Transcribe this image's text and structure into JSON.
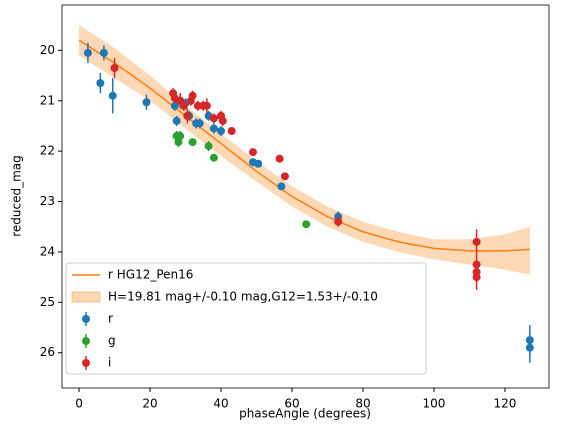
{
  "chart_data": {
    "type": "scatter",
    "xlabel": "phaseAngle (degrees)",
    "ylabel": "reduced_mag",
    "xlim": [
      -4.8,
      132.4
    ],
    "ylim": [
      26.7,
      19.1
    ],
    "xticks": [
      0,
      20,
      40,
      60,
      80,
      100,
      120
    ],
    "yticks": [
      20,
      21,
      22,
      23,
      24,
      25,
      26
    ],
    "legend": "lower left",
    "line": {
      "name": "r HG12_Pen16",
      "color": "#ff7f0e",
      "x": [
        0,
        10,
        20,
        30,
        40,
        50,
        60,
        70,
        80,
        90,
        100,
        110,
        120,
        127
      ],
      "values": [
        19.8,
        20.25,
        20.75,
        21.3,
        21.85,
        22.4,
        22.9,
        23.3,
        23.6,
        23.8,
        23.93,
        23.98,
        23.98,
        23.95
      ]
    },
    "band": {
      "name": "H=19.81 mag+/-0.10 mag,G12=1.53+/-0.10",
      "color": "#ff7f0e",
      "x": [
        0,
        10,
        20,
        30,
        40,
        50,
        60,
        70,
        80,
        90,
        100,
        110,
        120,
        127
      ],
      "lower": [
        19.5,
        19.95,
        20.5,
        21.1,
        21.65,
        22.2,
        22.7,
        23.1,
        23.4,
        23.6,
        23.75,
        23.75,
        23.65,
        23.5
      ],
      "upper": [
        20.1,
        20.55,
        21.0,
        21.55,
        22.1,
        22.6,
        23.1,
        23.5,
        23.8,
        24.0,
        24.15,
        24.25,
        24.35,
        24.45
      ]
    },
    "series": [
      {
        "name": "r",
        "color": "#1f77b4",
        "x": [
          2.5,
          6,
          7,
          9.5,
          19,
          27,
          27.5,
          28.5,
          30,
          31,
          33,
          34,
          36.5,
          38,
          40,
          49,
          50.5,
          57,
          73,
          127,
          127
        ],
        "values": [
          20.05,
          20.65,
          20.05,
          20.9,
          21.03,
          21.1,
          21.4,
          21.0,
          21.05,
          21.3,
          21.45,
          21.45,
          21.3,
          21.55,
          21.6,
          22.22,
          22.25,
          22.7,
          23.3,
          25.75,
          25.9
        ],
        "errors": [
          0.2,
          0.2,
          0.15,
          0.35,
          0.15,
          0.1,
          0.1,
          0.15,
          0.1,
          0.1,
          0.1,
          0.1,
          0.1,
          0.1,
          0.1,
          0.05,
          0.05,
          0.05,
          0.1,
          0.3,
          0.3
        ]
      },
      {
        "name": "g",
        "color": "#2ca02c",
        "x": [
          27.5,
          28,
          28.5,
          32,
          36.5,
          38,
          64
        ],
        "values": [
          21.7,
          21.82,
          21.7,
          21.82,
          21.9,
          22.13,
          23.45
        ],
        "errors": [
          0.1,
          0.1,
          0.1,
          0.05,
          0.1,
          0.05,
          0.05
        ]
      },
      {
        "name": "i",
        "color": "#d62728",
        "x": [
          10,
          26.5,
          27,
          28.5,
          29.5,
          30.5,
          31.5,
          32,
          33.5,
          35,
          36,
          38,
          40,
          40.5,
          43,
          49,
          56.5,
          58,
          73,
          112,
          112,
          112,
          112
        ],
        "values": [
          20.35,
          20.85,
          20.95,
          21.0,
          21.1,
          21.3,
          21.0,
          20.9,
          21.1,
          21.1,
          21.1,
          21.35,
          21.3,
          21.4,
          21.6,
          22.02,
          22.15,
          22.5,
          23.4,
          23.8,
          24.25,
          24.4,
          24.5
        ],
        "errors": [
          0.2,
          0.1,
          0.1,
          0.15,
          0.1,
          0.15,
          0.1,
          0.1,
          0.1,
          0.1,
          0.15,
          0.1,
          0.1,
          0.1,
          0.05,
          0.05,
          0.05,
          0.05,
          0.1,
          0.25,
          0.2,
          0.2,
          0.25
        ]
      }
    ]
  }
}
